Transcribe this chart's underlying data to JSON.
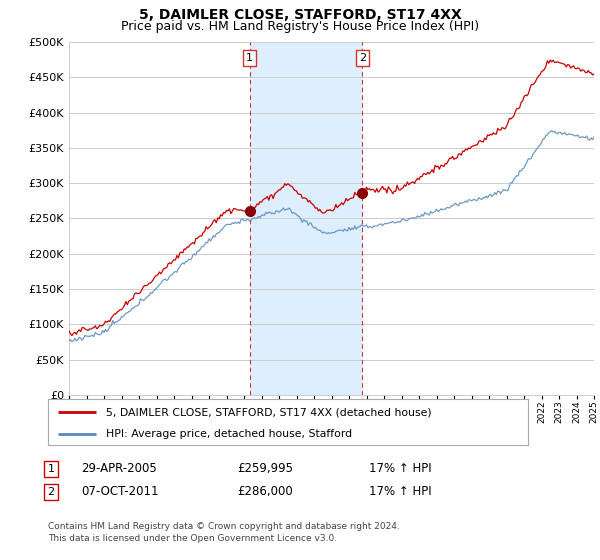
{
  "title": "5, DAIMLER CLOSE, STAFFORD, ST17 4XX",
  "subtitle": "Price paid vs. HM Land Registry's House Price Index (HPI)",
  "ylim": [
    0,
    500000
  ],
  "yticks": [
    0,
    50000,
    100000,
    150000,
    200000,
    250000,
    300000,
    350000,
    400000,
    450000,
    500000
  ],
  "x_start_year": 1995,
  "x_end_year": 2025,
  "sale1_year": 2005.32,
  "sale1_price": 259995,
  "sale2_year": 2011.76,
  "sale2_price": 286000,
  "sale1_date": "29-APR-2005",
  "sale1_price_str": "£259,995",
  "sale1_pct": "17% ↑ HPI",
  "sale2_date": "07-OCT-2011",
  "sale2_price_str": "£286,000",
  "sale2_pct": "17% ↑ HPI",
  "line1_label": "5, DAIMLER CLOSE, STAFFORD, ST17 4XX (detached house)",
  "line2_label": "HPI: Average price, detached house, Stafford",
  "line1_color": "#cc0000",
  "line2_color": "#5588bb",
  "shade_color": "#ddeeff",
  "marker_color": "#880000",
  "footer": "Contains HM Land Registry data © Crown copyright and database right 2024.\nThis data is licensed under the Open Government Licence v3.0.",
  "background_color": "#ffffff",
  "grid_color": "#cccccc",
  "title_fontsize": 10,
  "subtitle_fontsize": 9
}
